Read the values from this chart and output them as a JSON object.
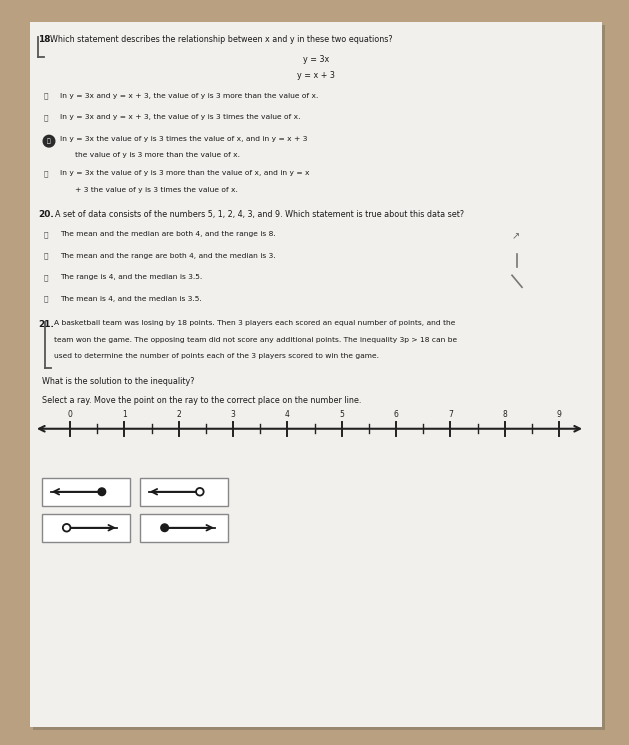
{
  "bg_color": "#b8a080",
  "paper_color": "#f2f0ed",
  "text_color": "#1a1a1a",
  "q18_number": "18.",
  "q18_prompt": "Which statement describes the relationship between x and y in these two equations?",
  "q18_eq1": "y = 3x",
  "q18_eq2": "y = x + 3",
  "q18_options": [
    "In y = 3x and y = x + 3, the value of y is 3 more than the value of x.",
    "In y = 3x and y = x + 3, the value of y is 3 times the value of x.",
    "In y = 3x the value of y is 3 times the value of x, and in y = x + 3 the value of y is 3 more than the value of x.",
    "In y = 3x the value of y is 3 more than the value of x, and in y = x + 3 the value of y is 3 times the value of x."
  ],
  "q18_selected": 2,
  "q20_number": "20.",
  "q20_prompt": "A set of data consists of the numbers 5, 1, 2, 4, 3, and 9. Which statement is true about this data set?",
  "q20_options": [
    "The mean and the median are both 4, and the range is 8.",
    "The mean and the range are both 4, and the median is 3.",
    "The range is 4, and the median is 3.5.",
    "The mean is 4, and the median is 3.5."
  ],
  "q21_number": "21.",
  "q21_prompt_lines": [
    "A basketball team was losing by 18 points. Then 3 players each scored an equal number of points, and the",
    "team won the game. The opposing team did not score any additional points. The inequality 3p > 18 can be",
    "used to determine the number of points each of the 3 players scored to win the game."
  ],
  "q21_sub1": "What is the solution to the inequality?",
  "q21_sub2": "Select a ray. Move the point on the ray to the correct place on the number line.",
  "number_line_ticks": [
    0,
    1,
    2,
    3,
    4,
    5,
    6,
    7,
    8,
    9
  ],
  "fs_title": 6.5,
  "fs_body": 5.8,
  "fs_small": 5.4,
  "lh": 0.165
}
